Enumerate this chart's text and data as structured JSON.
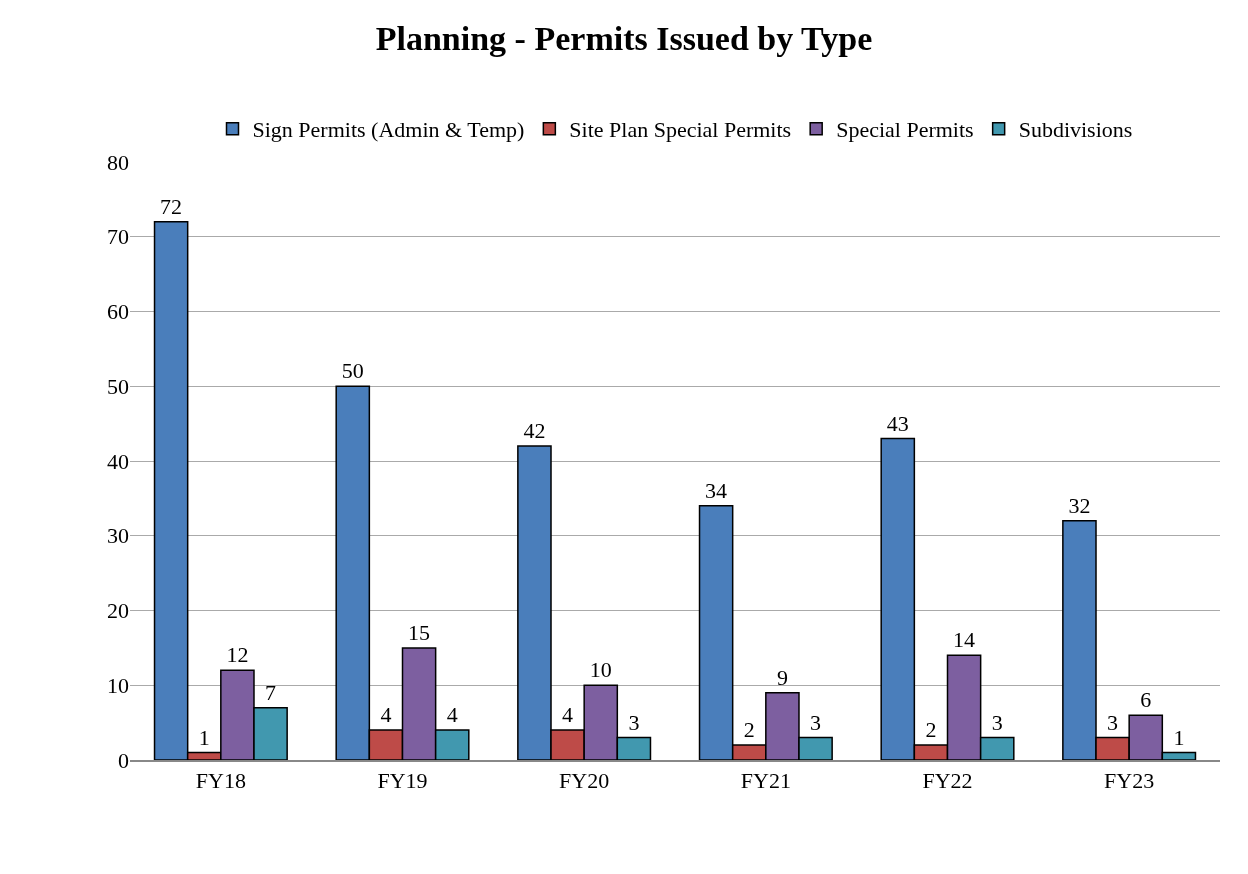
{
  "chart_data": {
    "type": "bar",
    "title": "Planning - Permits Issued by Type",
    "categories": [
      "FY18",
      "FY19",
      "FY20",
      "FY21",
      "FY22",
      "FY23"
    ],
    "series": [
      {
        "name": "Sign Permits (Admin & Temp)",
        "color": "#4a7ebb",
        "values": [
          72,
          50,
          42,
          34,
          43,
          32
        ]
      },
      {
        "name": "Site Plan Special Permits",
        "color": "#be4b48",
        "values": [
          1,
          4,
          4,
          2,
          2,
          3
        ]
      },
      {
        "name": "Special Permits",
        "color": "#7d5fa0",
        "values": [
          12,
          15,
          10,
          9,
          14,
          6
        ]
      },
      {
        "name": "Subdivisions",
        "color": "#4198af",
        "values": [
          7,
          4,
          3,
          3,
          3,
          1
        ]
      }
    ],
    "ylim": [
      0,
      80
    ],
    "yticks": [
      0,
      10,
      20,
      30,
      40,
      50,
      60,
      70,
      80
    ],
    "grid": "y",
    "legend": "top",
    "data_labels": true
  }
}
